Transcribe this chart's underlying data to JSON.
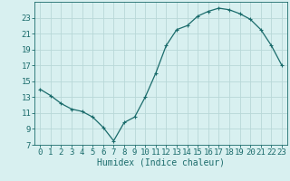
{
  "x": [
    0,
    1,
    2,
    3,
    4,
    5,
    6,
    7,
    8,
    9,
    10,
    11,
    12,
    13,
    14,
    15,
    16,
    17,
    18,
    19,
    20,
    21,
    22,
    23
  ],
  "y": [
    14.0,
    13.2,
    12.2,
    11.5,
    11.2,
    10.5,
    9.2,
    7.5,
    9.8,
    10.5,
    13.0,
    16.0,
    19.5,
    21.5,
    22.0,
    23.2,
    23.8,
    24.2,
    24.0,
    23.5,
    22.8,
    21.5,
    19.5,
    17.0
  ],
  "line_color": "#1a6b6b",
  "marker": "+",
  "marker_size": 3,
  "bg_color": "#d8f0f0",
  "grid_color": "#b8d8d8",
  "xlabel": "Humidex (Indice chaleur)",
  "ylim": [
    7,
    25
  ],
  "xlim": [
    -0.5,
    23.5
  ],
  "yticks": [
    7,
    9,
    11,
    13,
    15,
    17,
    19,
    21,
    23
  ],
  "xticks": [
    0,
    1,
    2,
    3,
    4,
    5,
    6,
    7,
    8,
    9,
    10,
    11,
    12,
    13,
    14,
    15,
    16,
    17,
    18,
    19,
    20,
    21,
    22,
    23
  ],
  "tick_color": "#1a6b6b",
  "label_fontsize": 7,
  "tick_fontsize": 6.5
}
